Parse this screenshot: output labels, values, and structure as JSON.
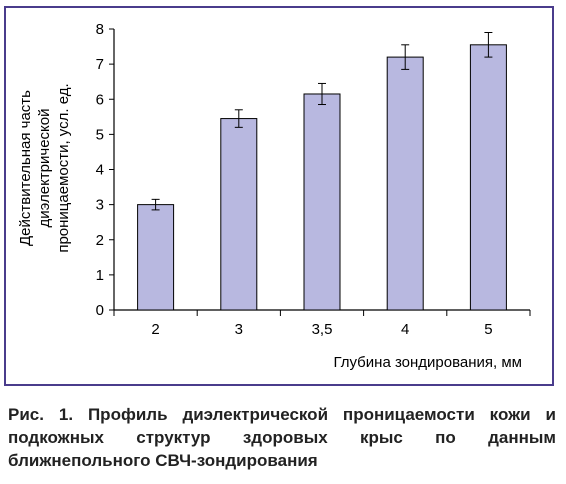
{
  "chart_data": {
    "type": "bar",
    "categories": [
      "2",
      "3",
      "3,5",
      "4",
      "5"
    ],
    "values": [
      3.0,
      5.45,
      6.15,
      7.2,
      7.55
    ],
    "errors": [
      0.15,
      0.25,
      0.3,
      0.35,
      0.35
    ],
    "xlabel": "Глубина зондирования, мм",
    "ylabel_lines": [
      "Действительная часть",
      "диэлектрической",
      "проницаемости, усл. ед."
    ],
    "ylim": [
      0,
      8
    ],
    "yticks": [
      "0",
      "1",
      "2",
      "3",
      "4",
      "5",
      "6",
      "7",
      "8"
    ],
    "grid": false,
    "bar_color": "#b8b8e0",
    "frame_color": "#4a3c8c"
  },
  "caption": "Рис. 1. Профиль диэлектрической проницаемости кожи и подкожных структур здоровых крыс по данным ближнепольного СВЧ-зондирования"
}
